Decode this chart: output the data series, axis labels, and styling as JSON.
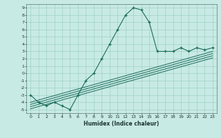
{
  "bg_color": "#c8eae4",
  "grid_color": "#9ecfc7",
  "line_color": "#1a6b5a",
  "xlabel": "Humidex (Indice chaleur)",
  "xlim": [
    -0.5,
    23.5
  ],
  "ylim": [
    -5.5,
    9.5
  ],
  "xticks": [
    0,
    1,
    2,
    3,
    4,
    5,
    6,
    7,
    8,
    9,
    10,
    11,
    12,
    13,
    14,
    15,
    16,
    17,
    18,
    19,
    20,
    21,
    22,
    23
  ],
  "yticks": [
    -5,
    -4,
    -3,
    -2,
    -1,
    0,
    1,
    2,
    3,
    4,
    5,
    6,
    7,
    8,
    9
  ],
  "curve1_x": [
    0,
    1,
    2,
    3,
    4,
    5,
    6,
    7,
    8,
    9,
    10,
    11,
    12,
    13,
    14,
    15,
    16,
    17,
    18,
    19,
    20,
    21,
    22,
    23
  ],
  "curve1_y": [
    -3,
    -4,
    -4.5,
    -4,
    -4.5,
    -5,
    -3,
    -1,
    0,
    2,
    4,
    6,
    8,
    9,
    8.7,
    7,
    3,
    3,
    3,
    3.5,
    3,
    3.5,
    3.2,
    3.5
  ],
  "line1_x": [
    0,
    23
  ],
  "line1_y": [
    -4.0,
    3.0
  ],
  "line2_x": [
    0,
    23
  ],
  "line2_y": [
    -4.3,
    2.7
  ],
  "line3_x": [
    0,
    23
  ],
  "line3_y": [
    -4.6,
    2.4
  ],
  "line4_x": [
    0,
    23
  ],
  "line4_y": [
    -4.9,
    2.1
  ]
}
